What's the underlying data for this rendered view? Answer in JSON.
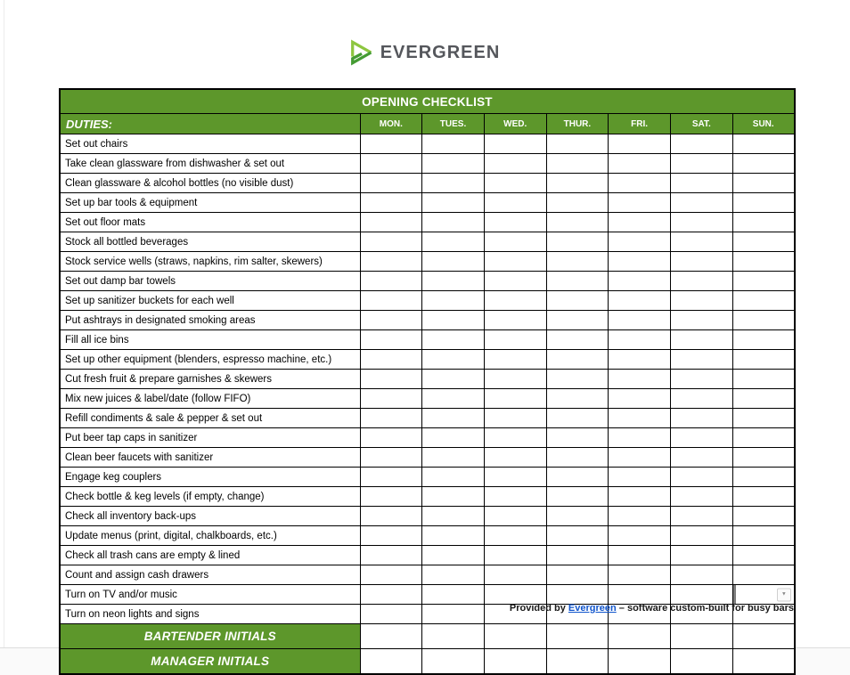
{
  "logo": {
    "text": "EVERGREEN"
  },
  "table": {
    "title": "OPENING CHECKLIST",
    "duties_header": "DUTIES:",
    "days": [
      "MON.",
      "TUES.",
      "WED.",
      "THUR.",
      "FRI.",
      "SAT.",
      "SUN."
    ],
    "duties": [
      "Set out chairs",
      "Take clean glassware from dishwasher & set out",
      "Clean glassware & alcohol bottles (no visible dust)",
      "Set up bar tools & equipment",
      "Set out floor mats",
      "Stock all bottled beverages",
      "Stock service wells (straws, napkins, rim salter, skewers)",
      "Set out damp bar towels",
      "Set up sanitizer buckets for each well",
      "Put ashtrays in designated smoking areas",
      "Fill all ice bins",
      "Set up other equipment (blenders, espresso machine, etc.)",
      "Cut fresh fruit & prepare garnishes & skewers",
      "Mix new juices & label/date (follow FIFO)",
      "Refill condiments & sale & pepper & set out",
      "Put beer tap caps in sanitizer",
      "Clean beer faucets with sanitizer",
      "Engage keg couplers",
      "Check bottle & keg levels (if empty, change)",
      "Check all inventory back-ups",
      "Update menus (print, digital, chalkboards, etc.)",
      "Check all trash cans are empty & lined",
      "Count and assign cash drawers",
      "Turn on TV and/or music",
      "Turn on neon lights and signs"
    ],
    "footer_rows": [
      "BARTENDER INITIALS",
      "MANAGER INITIALS"
    ],
    "dropdown_cell": {
      "row_index": 23,
      "day_index": 6,
      "glyph": "▼"
    }
  },
  "footer": {
    "prefix": "Provided by ",
    "link": "Evergreen",
    "suffix": " – software custom-built for busy bars"
  },
  "colors": {
    "header_green": "#5d972b",
    "logo_light_green": "#8dc63f",
    "logo_dark_green": "#449b33",
    "logo_gray": "#55575c",
    "link_blue": "#1155cc"
  }
}
